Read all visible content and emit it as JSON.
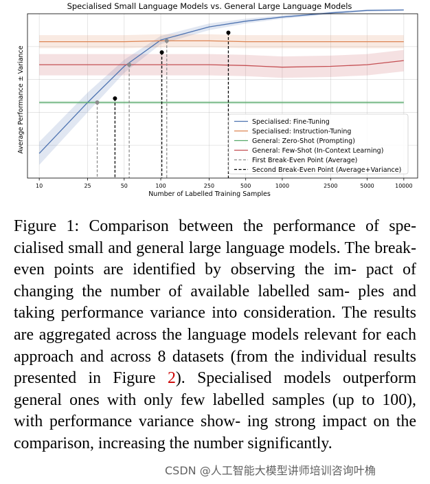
{
  "chart_data": {
    "type": "line",
    "title": "Specialised Small Language Models vs. General Large Language Models",
    "xlabel": "Number of Labelled Training Samples",
    "ylabel": "Average Performance ± Variance",
    "xscale": "log",
    "xlim": [
      8,
      13000
    ],
    "ylim": [
      0,
      100
    ],
    "x_ticks": [
      10,
      25,
      50,
      100,
      250,
      500,
      1000,
      2500,
      5000,
      10000
    ],
    "x_tick_labels": [
      "10",
      "25",
      "50",
      "100",
      "250",
      "500",
      "1000",
      "2500",
      "5000",
      "10000"
    ],
    "grid": true,
    "legend_position": "lower-right",
    "series": [
      {
        "name": "Specialised: Fine-Tuning",
        "color": "#4c72b0",
        "x": [
          10,
          25,
          50,
          100,
          250,
          500,
          1000,
          2500,
          5000,
          10000
        ],
        "values": [
          15,
          46,
          68,
          84,
          92,
          95.5,
          98,
          100.5,
          102,
          102.3
        ],
        "band": [
          7,
          6,
          4,
          2.5,
          2,
          1.5,
          1,
          0.8,
          0.6,
          0.5
        ]
      },
      {
        "name": "Specialised: Instruction-Tuning",
        "color": "#dd8452",
        "x": [
          10,
          25,
          50,
          100,
          250,
          500,
          1000,
          2500,
          5000,
          10000
        ],
        "values": [
          83,
          83,
          83,
          83.5,
          83.5,
          83,
          83,
          83,
          83,
          83
        ],
        "band": [
          4,
          4,
          4,
          4,
          4,
          4,
          4,
          4,
          4,
          4
        ]
      },
      {
        "name": "General: Zero-Shot (Prompting)",
        "color": "#55a868",
        "x": [
          10,
          25,
          50,
          100,
          250,
          500,
          1000,
          2500,
          5000,
          10000
        ],
        "values": [
          46,
          46,
          46,
          46,
          46,
          46,
          46,
          46,
          46,
          46
        ],
        "band": [
          1,
          1,
          1,
          1,
          1,
          1,
          1,
          1,
          1,
          1
        ]
      },
      {
        "name": "General: Few-Shot (In-Context Learning)",
        "color": "#c44e52",
        "x": [
          10,
          25,
          50,
          100,
          250,
          500,
          1000,
          2500,
          5000,
          10000
        ],
        "values": [
          69,
          69,
          69,
          69,
          69,
          68.5,
          67.5,
          68,
          69,
          71.5
        ],
        "band": [
          6.5,
          6.5,
          6.5,
          6.5,
          6.5,
          6.5,
          6.5,
          6.5,
          6.5,
          6.5
        ]
      }
    ],
    "break_even_first": {
      "name": "First Break-Even Point (Average)",
      "color": "#8c8c8c",
      "points": [
        {
          "x": 30,
          "y": 46
        },
        {
          "x": 55,
          "y": 69
        },
        {
          "x": 112,
          "y": 83.5
        }
      ]
    },
    "break_even_second": {
      "name": "Second Break-Even Point (Average+Variance)",
      "color": "#000000",
      "points": [
        {
          "x": 42,
          "y": 48.5
        },
        {
          "x": 102,
          "y": 76.5
        },
        {
          "x": 360,
          "y": 88.5
        }
      ]
    }
  },
  "caption": {
    "label": "Figure 1:",
    "lines": [
      "Comparison between the performance of spe-",
      "cialised small and general large language models. The",
      "break-even points are identified by observing the im-",
      "pact of changing the number of available labelled sam-",
      "ples and taking performance variance into consideration.",
      "The results are aggregated across the language models",
      "relevant for each approach and across 8 datasets (from",
      "the individual results presented in Figure ",
      "). Specialised",
      "models outperform general ones with only few labelled",
      "samples (up to 100), with performance variance show-",
      "ing strong impact on the comparison, increasing the",
      "number significantly."
    ],
    "figure_ref": "2"
  },
  "watermark": "CSDN @人工智能大模型讲师培训咨询叶桷"
}
